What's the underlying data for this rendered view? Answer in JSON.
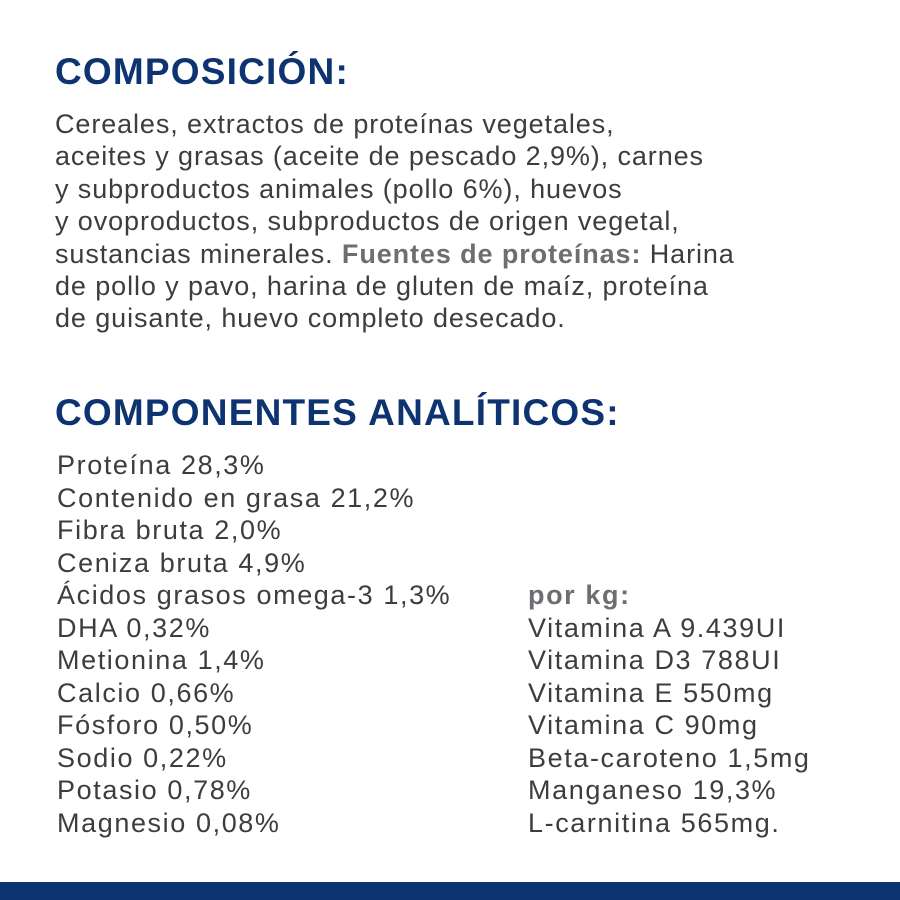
{
  "composicion": {
    "title": "COMPOSICIÓN:",
    "lines": [
      "Cereales, extractos de proteínas vegetales,",
      "aceites y grasas (aceite de pescado 2,9%), carnes",
      "y subproductos animales (pollo 6%), huevos",
      "y ovoproductos, subproductos de origen vegetal,",
      "sustancias minerales. ",
      "de pollo y pavo, harina de gluten de maíz, proteína",
      "de guisante, huevo completo desecado."
    ],
    "protein_sources_label": "Fuentes de proteínas:",
    "protein_sources_start": " Harina"
  },
  "analiticos": {
    "title": "COMPONENTES ANALÍTICOS:",
    "items": [
      "Proteína 28,3%",
      "Contenido en grasa 21,2%",
      "Fibra bruta 2,0%",
      "Ceniza bruta 4,9%",
      "Ácidos grasos omega-3 1,3%",
      "DHA 0,32%",
      "Metionina 1,4%",
      "Calcio 0,66%",
      "Fósforo 0,50%",
      "Sodio 0,22%",
      "Potasio 0,78%",
      "Magnesio 0,08%"
    ],
    "per_kg_label": "por kg:",
    "per_kg_items": [
      "Vitamina A 9.439UI",
      "Vitamina D3 788UI",
      "Vitamina E 550mg",
      "Vitamina C 90mg",
      "Beta-caroteno 1,5mg",
      "Manganeso 19,3%",
      "L-carnitina 565mg."
    ]
  },
  "colors": {
    "heading": "#0d3470",
    "text": "#3d3d3f",
    "bold_label": "#6d6e71",
    "footer_bar": "#0a3370"
  }
}
